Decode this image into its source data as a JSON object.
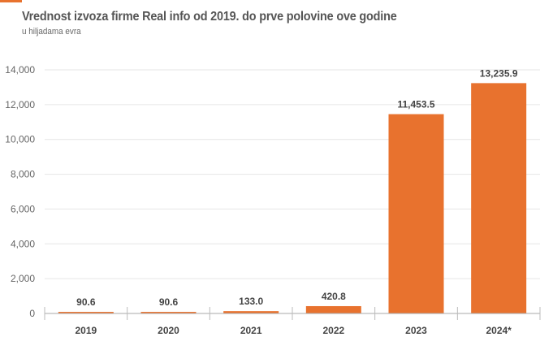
{
  "colors": {
    "bar": "#e8722e",
    "accent": "#e8722e",
    "grid": "#e6e6e6"
  },
  "chart_data": {
    "type": "bar",
    "title": "Vrednost izvoza firme Real info od 2019. do prve polovine ove godine",
    "subtitle": "u hiljadama evra",
    "xlabel": "",
    "ylabel": "",
    "categories": [
      "2019",
      "2020",
      "2021",
      "2022",
      "2023",
      "2024*"
    ],
    "values": [
      90.6,
      90.6,
      133.0,
      420.8,
      11453.5,
      13235.9
    ],
    "data_labels": [
      "90.6",
      "90.6",
      "133.0",
      "420.8",
      "11,453.5",
      "13,235.9"
    ],
    "ylim": [
      0,
      14000
    ],
    "yticks": [
      0,
      2000,
      4000,
      6000,
      8000,
      10000,
      12000,
      14000
    ],
    "ytick_labels": [
      "0",
      "2,000",
      "4,000",
      "6,000",
      "8,000",
      "10,000",
      "12,000",
      "14,000"
    ],
    "grid": true,
    "legend": "none"
  }
}
